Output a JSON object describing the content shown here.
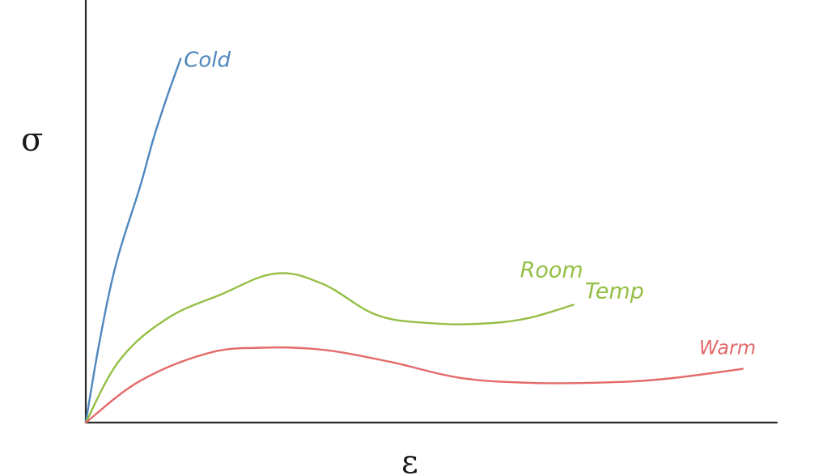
{
  "chart_data": {
    "type": "line",
    "title": "",
    "xlabel": "ε",
    "ylabel": "σ",
    "xlim": [
      0,
      10
    ],
    "ylim": [
      0,
      10
    ],
    "grid": false,
    "legend": "none (series labeled inline)",
    "series": [
      {
        "name": "Cold",
        "color": "#4f87bf",
        "x": [
          0,
          0.2,
          0.45,
          0.8,
          1.0,
          1.2,
          1.4
        ],
        "y": [
          0,
          2.3,
          4.6,
          6.8,
          8.2,
          9.4,
          10.5
        ]
      },
      {
        "name": "Room\nTemp",
        "color": "#95bf45",
        "x": [
          0,
          0.5,
          1.2,
          2.0,
          2.8,
          3.5,
          4.3,
          5.1,
          5.8,
          6.5,
          7.2
        ],
        "y": [
          0,
          1.8,
          3.0,
          3.7,
          4.3,
          4.0,
          3.1,
          2.87,
          2.85,
          3.0,
          3.4
        ]
      },
      {
        "name": "Warm",
        "color": "#e46a6a",
        "x": [
          0,
          0.8,
          1.8,
          2.6,
          3.5,
          4.5,
          5.5,
          6.5,
          7.5,
          8.5,
          9.7
        ],
        "y": [
          0,
          1.2,
          2.0,
          2.16,
          2.1,
          1.75,
          1.3,
          1.15,
          1.15,
          1.25,
          1.55
        ]
      }
    ]
  }
}
